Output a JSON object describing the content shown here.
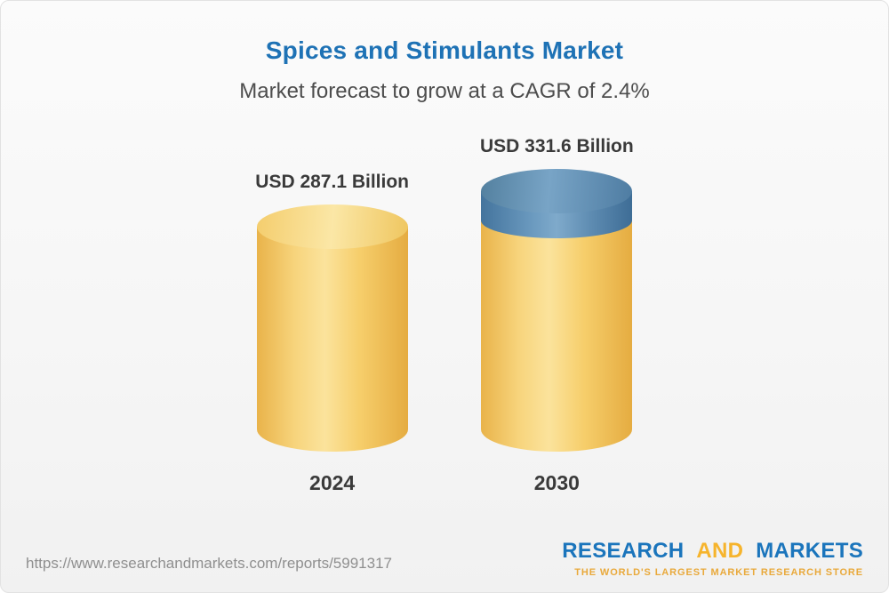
{
  "page": {
    "footer_url": "https://www.researchandmarkets.com/reports/5991317",
    "logo": {
      "research": "RESEARCH",
      "and": "AND",
      "markets": "MARKETS",
      "tagline": "THE WORLD'S LARGEST MARKET RESEARCH STORE"
    }
  },
  "chart_data": {
    "type": "bar",
    "bar_style": "3d-cylinder",
    "title": "Spices and Stimulants Market",
    "subtitle": "Market forecast to grow at a CAGR of 2.4%",
    "categories": [
      "2024",
      "2030"
    ],
    "values": [
      287.1,
      331.6
    ],
    "value_labels": [
      "USD 287.1 Billion",
      "USD 331.6 Billion"
    ],
    "unit": "USD Billion",
    "cagr_pct": 2.4,
    "ylim": [
      0,
      340
    ],
    "grid": false,
    "legend": "none",
    "colors": {
      "bar": "#F7CE68",
      "growth_segment": "#5D89AE",
      "title": "#1E72B5",
      "text": "#3A3A3A",
      "logo_blue": "#1B75BC",
      "logo_gold": "#F6B42C"
    }
  }
}
